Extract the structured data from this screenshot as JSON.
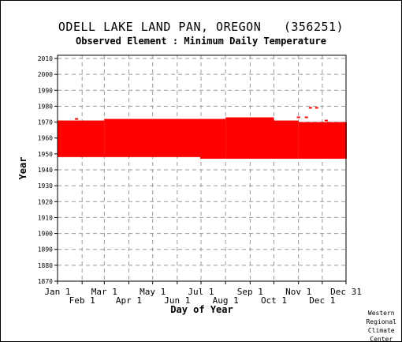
{
  "title": "ODELL LAKE LAND PAN, OREGON",
  "station_id": "(356251)",
  "subtitle": "Observed Element : Minimum Daily Temperature",
  "credit": [
    "Western",
    "Regional",
    "Climate",
    "Center"
  ],
  "colors": {
    "data": "#ff0000",
    "grid": "#999999",
    "axis": "#000000"
  },
  "chart_data": {
    "type": "scatter",
    "title": "ODELL LAKE LAND PAN, OREGON   (356251)",
    "subtitle": "Observed Element : Minimum Daily Temperature",
    "xlabel": "Day of Year",
    "ylabel": "Year",
    "xlim": [
      1,
      365
    ],
    "ylim": [
      1870,
      2012
    ],
    "grid": true,
    "x_ticks_upper": [
      {
        "label": "Jan 1",
        "day": 1
      },
      {
        "label": "Mar 1",
        "day": 60
      },
      {
        "label": "May 1",
        "day": 121
      },
      {
        "label": "Jul 1",
        "day": 182
      },
      {
        "label": "Sep 1",
        "day": 244
      },
      {
        "label": "Nov 1",
        "day": 305
      },
      {
        "label": "Dec 31",
        "day": 365
      }
    ],
    "x_ticks_lower": [
      {
        "label": "Feb 1",
        "day": 32
      },
      {
        "label": "Apr 1",
        "day": 91
      },
      {
        "label": "Jun 1",
        "day": 152
      },
      {
        "label": "Aug 1",
        "day": 213
      },
      {
        "label": "Oct 1",
        "day": 274
      },
      {
        "label": "Dec 1",
        "day": 335
      }
    ],
    "y_ticks": [
      2010,
      2000,
      1990,
      1980,
      1970,
      1960,
      1950,
      1940,
      1930,
      1920,
      1910,
      1900,
      1890,
      1880,
      1870
    ],
    "coverage": [
      {
        "start_day": 1,
        "end_day": 59,
        "from_year": 1948,
        "to_year": 1971
      },
      {
        "start_day": 60,
        "end_day": 180,
        "from_year": 1948,
        "to_year": 1972
      },
      {
        "start_day": 181,
        "end_day": 212,
        "from_year": 1947,
        "to_year": 1972
      },
      {
        "start_day": 213,
        "end_day": 273,
        "from_year": 1947,
        "to_year": 1973
      },
      {
        "start_day": 274,
        "end_day": 304,
        "from_year": 1947,
        "to_year": 1971
      },
      {
        "start_day": 305,
        "end_day": 365,
        "from_year": 1947,
        "to_year": 1970
      }
    ],
    "observations": [
      {
        "day": 25,
        "year": 1972
      },
      {
        "day": 130,
        "year": 1971
      },
      {
        "day": 165,
        "year": 1971
      },
      {
        "day": 305,
        "year": 1973
      },
      {
        "day": 315,
        "year": 1973
      },
      {
        "day": 320,
        "year": 1979
      },
      {
        "day": 328,
        "year": 1979
      },
      {
        "day": 340,
        "year": 1971
      }
    ]
  }
}
